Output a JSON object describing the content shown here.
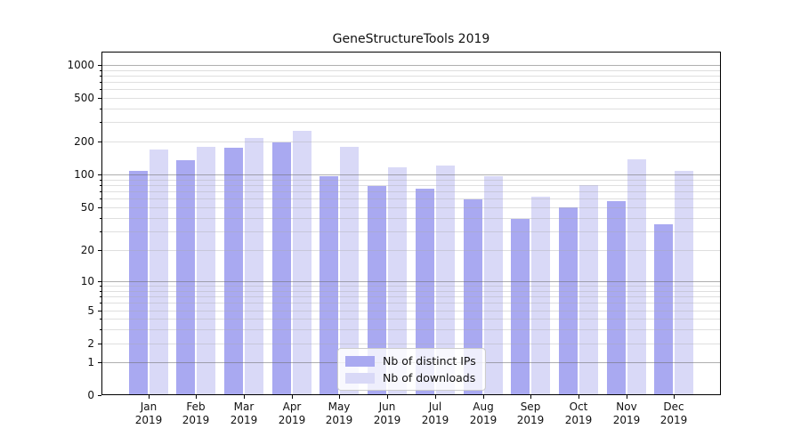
{
  "title": "GeneStructureTools 2019",
  "colors": {
    "distinct_ips_bar": "#a9a9f1",
    "downloads_bar": "#d9d9f7"
  },
  "legend": {
    "items": [
      {
        "label": "Nb of distinct IPs",
        "color_key": "distinct_ips_bar"
      },
      {
        "label": "Nb of downloads",
        "color_key": "downloads_bar"
      }
    ]
  },
  "x_axis": {
    "months": [
      "Jan",
      "Feb",
      "Mar",
      "Apr",
      "May",
      "Jun",
      "Jul",
      "Aug",
      "Sep",
      "Oct",
      "Nov",
      "Dec"
    ],
    "year": "2019"
  },
  "y_axis": {
    "scale": "symlog",
    "ticks_labeled": [
      0,
      1,
      2,
      5,
      10,
      20,
      50,
      100,
      200,
      500,
      1000
    ],
    "ticks_minor": [
      3,
      4,
      6,
      7,
      8,
      9,
      30,
      40,
      60,
      70,
      80,
      90,
      300,
      400,
      600,
      700,
      800,
      900
    ],
    "range_top": 1300
  },
  "chart_data": {
    "type": "bar",
    "title": "GeneStructureTools 2019",
    "categories": [
      "Jan 2019",
      "Feb 2019",
      "Mar 2019",
      "Apr 2019",
      "May 2019",
      "Jun 2019",
      "Jul 2019",
      "Aug 2019",
      "Sep 2019",
      "Oct 2019",
      "Nov 2019",
      "Dec 2019"
    ],
    "series": [
      {
        "name": "Nb of distinct IPs",
        "values": [
          108,
          135,
          175,
          195,
          97,
          78,
          74,
          59,
          39,
          50,
          57,
          35
        ]
      },
      {
        "name": "Nb of downloads",
        "values": [
          170,
          180,
          215,
          250,
          180,
          116,
          120,
          97,
          63,
          80,
          137,
          108
        ]
      }
    ],
    "xlabel": "",
    "ylabel": "",
    "yticks": [
      0,
      1,
      2,
      5,
      10,
      20,
      50,
      100,
      200,
      500,
      1000
    ],
    "yscale": "symlog",
    "grid": "on",
    "legend_position": "lower center"
  }
}
